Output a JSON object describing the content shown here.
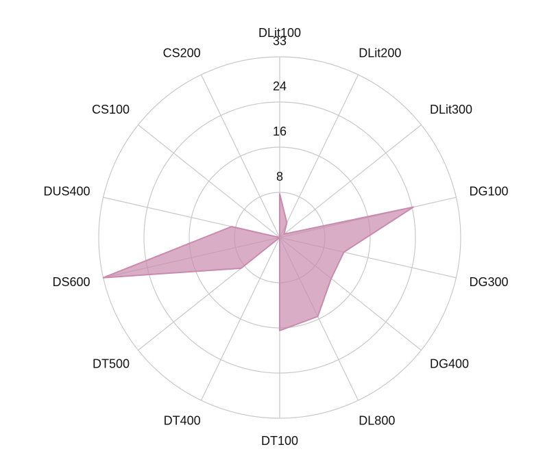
{
  "chart_data": {
    "type": "radar",
    "categories": [
      "DLit100",
      "DLit200",
      "DLit300",
      "DG100",
      "DG300",
      "DG400",
      "DL800",
      "DT100",
      "DT400",
      "DT500",
      "DS600",
      "DUS400",
      "CS100",
      "CS200"
    ],
    "series": [
      {
        "values": [
          8,
          3,
          1,
          25,
          12,
          12,
          16,
          17,
          0,
          9,
          33,
          9,
          0,
          0
        ]
      }
    ],
    "rlim": [
      0,
      33
    ],
    "rticks": [
      "8",
      "16",
      "24",
      "33"
    ],
    "grid": true,
    "colors": {
      "fill": "#c98aae",
      "stroke": "#c98aae",
      "grid": "#c8c8c8"
    }
  }
}
